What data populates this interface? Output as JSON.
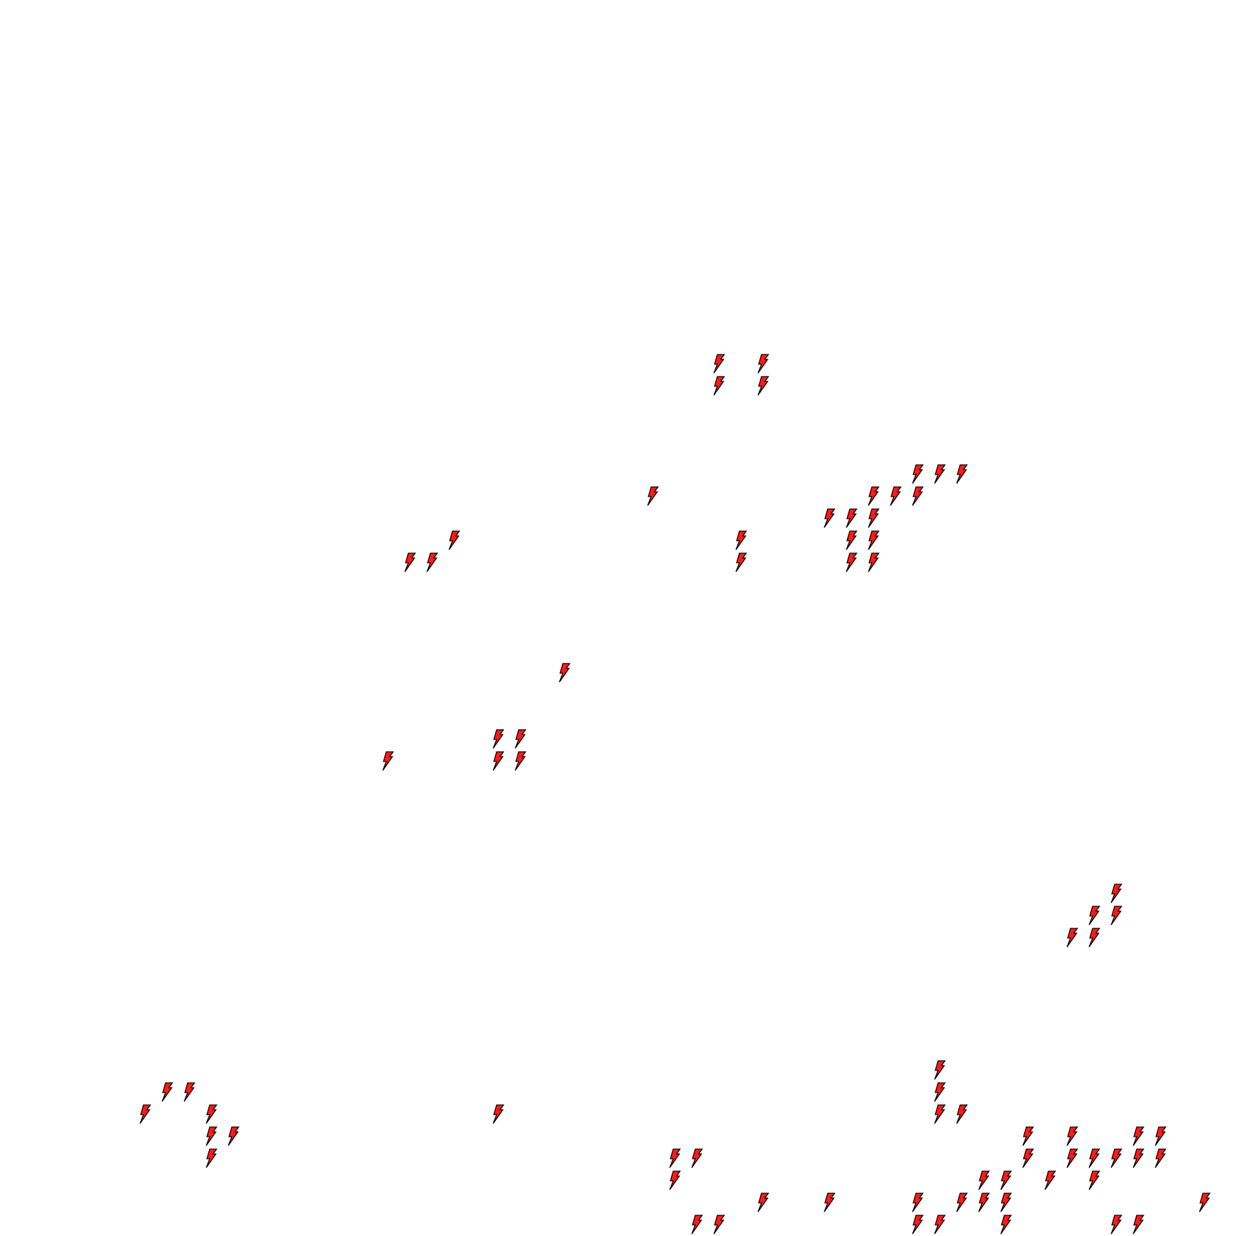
{
  "map": {
    "background": "#ffffff",
    "marker": {
      "icon": "lightning-bolt-icon",
      "fill": "#ff1a1a",
      "outline": "#000000"
    }
  }
}
